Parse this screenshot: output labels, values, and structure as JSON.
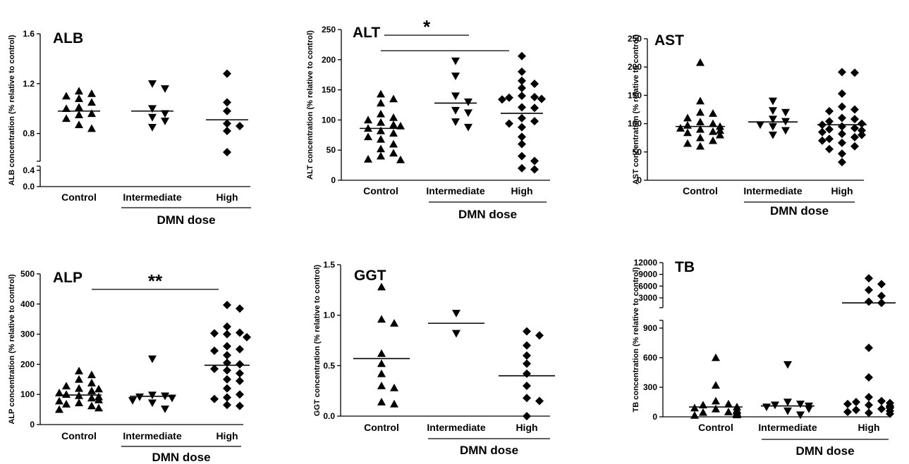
{
  "figure": {
    "group_label": "DMN dose",
    "categories": [
      "Control",
      "Intermediate",
      "High"
    ]
  },
  "chart_data": [
    {
      "type": "scatter",
      "title": "ALB",
      "ylabel": "ALB concentration (% relative to control)",
      "yticks": [
        0.0,
        0.4,
        0.8,
        1.2,
        1.6
      ],
      "ylim": [
        0,
        1.6
      ],
      "axis_break": "between 0.4 and 0.6",
      "series": [
        {
          "category": "Control",
          "marker": "triangle-up",
          "mean": 0.98,
          "values": [
            1.14,
            1.12,
            1.1,
            1.08,
            1.05,
            1.01,
            1.0,
            0.96,
            0.95,
            0.92,
            0.87,
            0.84
          ]
        },
        {
          "category": "Intermediate",
          "marker": "triangle-down",
          "mean": 0.98,
          "values": [
            1.2,
            1.16,
            1.0,
            0.96,
            0.93,
            0.9,
            0.85
          ]
        },
        {
          "category": "High",
          "marker": "diamond",
          "mean": 0.91,
          "values": [
            1.28,
            1.05,
            0.98,
            0.88,
            0.86,
            0.82,
            0.65
          ]
        }
      ],
      "significance": []
    },
    {
      "type": "scatter",
      "title": "ALT",
      "ylabel": "ALT concentration (% relative to control)",
      "yticks": [
        0,
        50,
        100,
        150,
        200,
        250
      ],
      "ylim": [
        0,
        250
      ],
      "series": [
        {
          "category": "Control",
          "marker": "triangle-up",
          "mean": 86,
          "values": [
            143,
            135,
            128,
            110,
            104,
            100,
            96,
            92,
            90,
            86,
            82,
            78,
            72,
            68,
            60,
            52,
            45,
            40,
            35,
            34
          ]
        },
        {
          "category": "Intermediate",
          "marker": "triangle-down",
          "mean": 128,
          "values": [
            198,
            173,
            140,
            130,
            116,
            112,
            97,
            88
          ]
        },
        {
          "category": "High",
          "marker": "diamond",
          "mean": 111,
          "values": [
            206,
            180,
            165,
            160,
            153,
            140,
            138,
            137,
            135,
            134,
            121,
            120,
            103,
            98,
            94,
            88,
            72,
            60,
            40,
            32,
            20,
            18
          ]
        }
      ],
      "significance": [
        {
          "from": "Control",
          "to": "Intermediate",
          "label": "*"
        },
        {
          "from": "Control",
          "to": "High",
          "label": ""
        }
      ]
    },
    {
      "type": "scatter",
      "title": "AST",
      "ylabel": "AST concentration (% relative to control)",
      "yticks": [
        0,
        50,
        100,
        150,
        200,
        250
      ],
      "ylim": [
        0,
        250
      ],
      "series": [
        {
          "category": "Control",
          "marker": "triangle-up",
          "mean": 95,
          "values": [
            208,
            140,
            120,
            118,
            110,
            103,
            100,
            97,
            95,
            92,
            90,
            88,
            86,
            84,
            80,
            75,
            70,
            65,
            60
          ]
        },
        {
          "category": "Intermediate",
          "marker": "triangle-down",
          "mean": 103,
          "values": [
            140,
            123,
            120,
            108,
            104,
            98,
            95,
            88,
            80
          ]
        },
        {
          "category": "High",
          "marker": "diamond",
          "mean": 98,
          "values": [
            191,
            190,
            153,
            130,
            125,
            122,
            110,
            108,
            104,
            100,
            98,
            95,
            92,
            90,
            88,
            85,
            82,
            80,
            76,
            73,
            70,
            66,
            60,
            55,
            47,
            32
          ]
        }
      ],
      "significance": []
    },
    {
      "type": "scatter",
      "title": "ALP",
      "ylabel": "ALP concentration (% relative to control)",
      "yticks": [
        0,
        100,
        200,
        300,
        400,
        500
      ],
      "ylim": [
        0,
        500
      ],
      "series": [
        {
          "category": "Control",
          "marker": "triangle-up",
          "mean": 98,
          "values": [
            178,
            165,
            150,
            138,
            128,
            120,
            118,
            112,
            105,
            100,
            96,
            92,
            88,
            82,
            78,
            72,
            68,
            62,
            55,
            50
          ]
        },
        {
          "category": "Intermediate",
          "marker": "triangle-down",
          "mean": 94,
          "values": [
            218,
            98,
            95,
            92,
            88,
            80,
            72,
            52
          ]
        },
        {
          "category": "High",
          "marker": "diamond",
          "mean": 197,
          "values": [
            397,
            385,
            325,
            305,
            303,
            300,
            290,
            260,
            250,
            245,
            230,
            205,
            200,
            185,
            180,
            170,
            150,
            145,
            120,
            100,
            90,
            85,
            65,
            62
          ]
        }
      ],
      "significance": [
        {
          "from": "Control",
          "to": "High",
          "label": "**"
        }
      ]
    },
    {
      "type": "scatter",
      "title": "GGT",
      "ylabel": "GGT concentration (% relative to control)",
      "yticks": [
        0.0,
        0.5,
        1.0,
        1.5
      ],
      "ylim": [
        0,
        1.5
      ],
      "series": [
        {
          "category": "Control",
          "marker": "triangle-up",
          "mean": 0.57,
          "values": [
            1.28,
            0.96,
            0.92,
            0.62,
            0.52,
            0.42,
            0.3,
            0.28,
            0.14,
            0.12
          ]
        },
        {
          "category": "Intermediate",
          "marker": "triangle-down",
          "mean": 0.92,
          "values": [
            1.02,
            0.82
          ]
        },
        {
          "category": "High",
          "marker": "diamond",
          "mean": 0.4,
          "values": [
            0.84,
            0.8,
            0.7,
            0.6,
            0.52,
            0.42,
            0.3,
            0.18,
            0.15,
            0.0
          ]
        }
      ],
      "significance": []
    },
    {
      "type": "scatter",
      "title": "TB",
      "ylabel": "TB concentration (% relative to control)",
      "yticks": [
        0,
        300,
        600,
        900,
        3000,
        6000,
        9000,
        12000
      ],
      "ylim": [
        0,
        12000
      ],
      "axis_break": "between 900 and 3000",
      "series": [
        {
          "category": "Control",
          "marker": "triangle-up",
          "mean": 100,
          "values": [
            600,
            320,
            160,
            130,
            120,
            100,
            90,
            80,
            70,
            60,
            50,
            45,
            40,
            35,
            30,
            25,
            20,
            15
          ]
        },
        {
          "category": "Intermediate",
          "marker": "triangle-down",
          "mean": 110,
          "values": [
            530,
            150,
            130,
            120,
            110,
            100,
            80,
            60,
            20
          ]
        },
        {
          "category": "High",
          "marker": "diamond",
          "mean": 1700,
          "values": [
            8000,
            6500,
            5000,
            3500,
            2000,
            1700,
            700,
            400,
            200,
            160,
            150,
            140,
            130,
            120,
            110,
            100,
            90,
            80,
            70,
            60,
            50,
            40,
            30
          ]
        }
      ],
      "significance": []
    }
  ]
}
